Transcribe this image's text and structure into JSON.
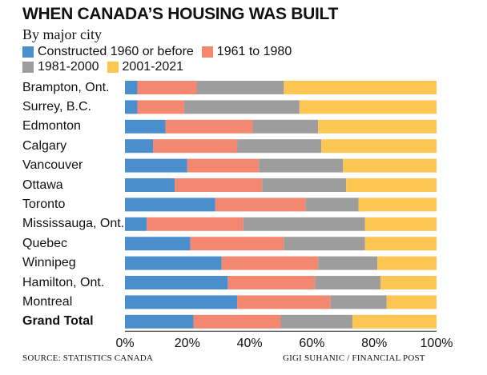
{
  "title": "WHEN CANADA’S HOUSING WAS BUILT",
  "subtitle": "By major city",
  "source": "SOURCE: STATISTICS CANADA",
  "credit": "GIGI SUHANIC / FINANCIAL POST",
  "legend": [
    {
      "label": "Constructed 1960 or before",
      "color": "#4a8ecd"
    },
    {
      "label": "1961 to 1980",
      "color": "#f4876f"
    },
    {
      "label": "1981-2000",
      "color": "#9d9d9d"
    },
    {
      "label": "2001-2021",
      "color": "#fdc551"
    }
  ],
  "chart_data": {
    "type": "bar",
    "orientation": "horizontal",
    "stacked": "percent",
    "categories": [
      "Brampton, Ont.",
      "Surrey, B.C.",
      "Edmonton",
      "Calgary",
      "Vancouver",
      "Ottawa",
      "Toronto",
      "Mississauga, Ont.",
      "Quebec",
      "Winnipeg",
      "Hamilton, Ont.",
      "Montreal",
      "Grand Total"
    ],
    "series": [
      {
        "name": "Constructed 1960 or before",
        "color": "#4a8ecd",
        "values": [
          4,
          4,
          13,
          9,
          20,
          16,
          29,
          7,
          21,
          31,
          33,
          36,
          22
        ]
      },
      {
        "name": "1961 to 1980",
        "color": "#f4876f",
        "values": [
          19,
          15,
          28,
          27,
          23,
          28,
          29,
          31,
          30,
          31,
          28,
          30,
          28
        ]
      },
      {
        "name": "1981-2000",
        "color": "#9d9d9d",
        "values": [
          28,
          37,
          21,
          27,
          27,
          27,
          17,
          39,
          26,
          19,
          21,
          18,
          23
        ]
      },
      {
        "name": "2001-2021",
        "color": "#fdc551",
        "values": [
          49,
          44,
          38,
          37,
          30,
          29,
          25,
          23,
          23,
          19,
          18,
          16,
          27
        ]
      }
    ],
    "xlim": [
      0,
      100
    ],
    "xticks": [
      "0%",
      "20%",
      "40%",
      "60%",
      "80%",
      "100%"
    ],
    "grid": false,
    "legend_position": "top"
  }
}
